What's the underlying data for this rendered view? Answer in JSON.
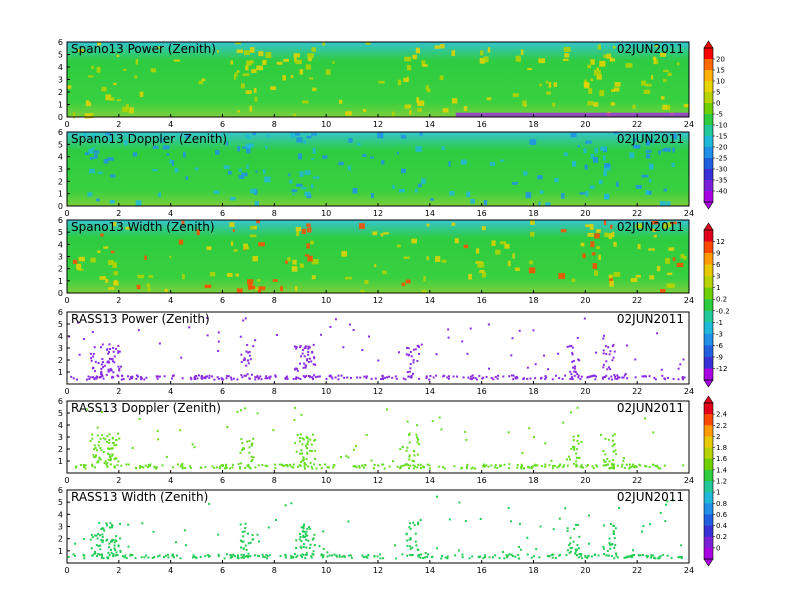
{
  "figure": {
    "background": "#ffffff"
  },
  "chart_data": [
    {
      "type": "heatmap",
      "title": "Spano13 Power (Zenith)",
      "date": "02JUN2011",
      "x_ticks": [
        "0",
        "2",
        "4",
        "6",
        "8",
        "10",
        "12",
        "14",
        "16",
        "18",
        "20",
        "22",
        "24"
      ],
      "y_ticks": [
        "0",
        "1",
        "2",
        "3",
        "4",
        "5",
        "6"
      ],
      "xlim": [
        0,
        24
      ],
      "ylim": [
        0,
        6
      ],
      "dominant_color": "#2ecc40",
      "colorbar": {
        "labels": [
          "20",
          "15",
          "10",
          "5",
          "0",
          "-5",
          "-10",
          "-15",
          "-20",
          "-25",
          "-30",
          "-35",
          "-40"
        ],
        "colors": [
          "#ff0000",
          "#ff6a00",
          "#ffb000",
          "#e8d400",
          "#b8d400",
          "#6fd000",
          "#2ecc40",
          "#22c89a",
          "#20b8d8",
          "#2090e8",
          "#2060e0",
          "#3a30d8",
          "#7a20d8",
          "#a800e0"
        ]
      }
    },
    {
      "type": "heatmap",
      "title": "Spano13 Doppler (Zenith)",
      "date": "02JUN2011",
      "x_ticks": [
        "0",
        "2",
        "4",
        "6",
        "8",
        "10",
        "12",
        "14",
        "16",
        "18",
        "20",
        "22",
        "24"
      ],
      "y_ticks": [
        "0",
        "1",
        "2",
        "3",
        "4",
        "5",
        "6"
      ],
      "xlim": [
        0,
        24
      ],
      "ylim": [
        0,
        6
      ],
      "dominant_color": "#2ecc40"
    },
    {
      "type": "heatmap",
      "title": "Spano13 Width (Zenith)",
      "date": "02JUN2011",
      "x_ticks": [
        "0",
        "2",
        "4",
        "6",
        "8",
        "10",
        "12",
        "14",
        "16",
        "18",
        "20",
        "22",
        "24"
      ],
      "y_ticks": [
        "0",
        "1",
        "2",
        "3",
        "4",
        "5",
        "6"
      ],
      "xlim": [
        0,
        24
      ],
      "ylim": [
        0,
        6
      ],
      "dominant_color": "#2ecc40",
      "colorbar": {
        "labels": [
          "12",
          "9",
          "6",
          "3",
          "1",
          "0.2",
          "-0.2",
          "-1",
          "-3",
          "-6",
          "-9",
          "-12"
        ],
        "colors": [
          "#e0001a",
          "#ff4a00",
          "#ff9a00",
          "#e8c800",
          "#b8d400",
          "#6fd000",
          "#2ecc40",
          "#22c89a",
          "#20b8d8",
          "#2090e8",
          "#2060e0",
          "#3a30d8",
          "#a800e0"
        ]
      }
    },
    {
      "type": "scatter",
      "title": "RASS13 Power (Zenith)",
      "date": "02JUN2011",
      "x_ticks": [
        "0",
        "2",
        "4",
        "6",
        "8",
        "10",
        "12",
        "14",
        "16",
        "18",
        "20",
        "22",
        "24"
      ],
      "y_ticks": [
        "1",
        "2",
        "3",
        "4",
        "5",
        "6"
      ],
      "xlim": [
        0,
        24
      ],
      "ylim": [
        0,
        6
      ],
      "dominant_color": "#8a2be2"
    },
    {
      "type": "scatter",
      "title": "RASS13 Doppler (Zenith)",
      "date": "02JUN2011",
      "x_ticks": [
        "0",
        "2",
        "4",
        "6",
        "8",
        "10",
        "12",
        "14",
        "16",
        "18",
        "20",
        "22",
        "24"
      ],
      "y_ticks": [
        "1",
        "2",
        "3",
        "4",
        "5",
        "6"
      ],
      "xlim": [
        0,
        24
      ],
      "ylim": [
        0,
        6
      ],
      "dominant_color": "#66dd22",
      "colorbar": {
        "labels": [
          "2.4",
          "2.2",
          "2",
          "1.8",
          "1.6",
          "1.4",
          "1.2",
          "1",
          "0.8",
          "0.6",
          "0.4",
          "0.2",
          "0"
        ],
        "colors": [
          "#e0001a",
          "#ff4a00",
          "#ff9a00",
          "#e8c800",
          "#b8d400",
          "#6fd000",
          "#2ecc40",
          "#22c89a",
          "#20b8d8",
          "#2090e8",
          "#2060e0",
          "#3a30d8",
          "#7a20d8",
          "#a800e0"
        ]
      }
    },
    {
      "type": "scatter",
      "title": "RASS13 Width (Zenith)",
      "date": "02JUN2011",
      "x_ticks": [
        "0",
        "2",
        "4",
        "6",
        "8",
        "10",
        "12",
        "14",
        "16",
        "18",
        "20",
        "22",
        "24"
      ],
      "y_ticks": [
        "1",
        "2",
        "3",
        "4",
        "5",
        "6"
      ],
      "xlim": [
        0,
        24
      ],
      "ylim": [
        0,
        6
      ],
      "dominant_color": "#22cc55"
    }
  ]
}
